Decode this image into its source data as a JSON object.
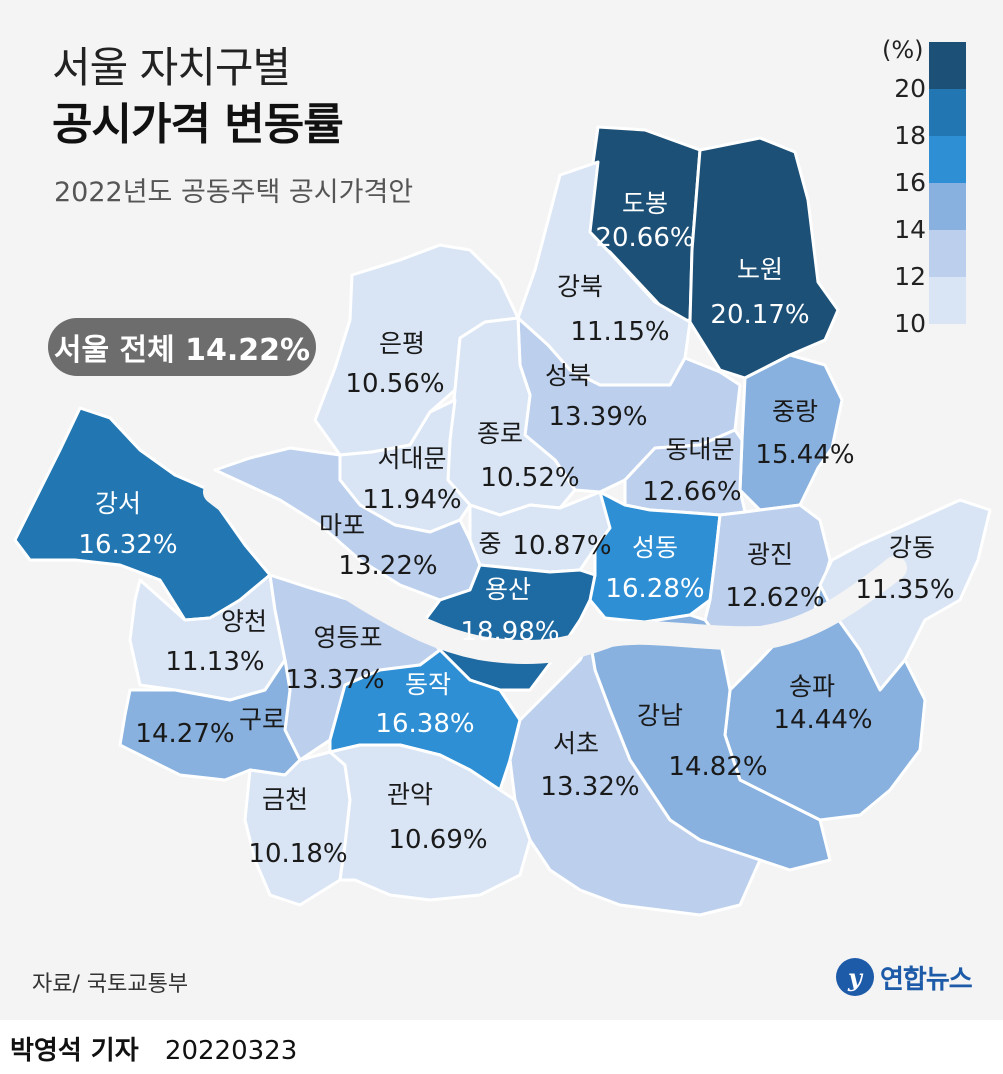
{
  "title_line1": "서울 자치구별",
  "title_line2": "공시가격 변동률",
  "subtitle": "2022년도 공동주택 공시가격안",
  "overall_badge": "서울 전체 14.22%",
  "legend": {
    "unit": "(%)",
    "ticks": [
      "20",
      "18",
      "16",
      "14",
      "12",
      "10"
    ],
    "colors": [
      "#1c5077",
      "#2277b3",
      "#2f8fd4",
      "#88b1df",
      "#bcd0ee",
      "#d9e5f5"
    ]
  },
  "districts": [
    {
      "key": "dobong",
      "name": "도봉",
      "value": "20.66%",
      "color": "#1c5077",
      "light_text": true
    },
    {
      "key": "nowon",
      "name": "노원",
      "value": "20.17%",
      "color": "#1c5077",
      "light_text": true
    },
    {
      "key": "gangbuk",
      "name": "강북",
      "value": "11.15%",
      "color": "#d9e5f5",
      "light_text": false
    },
    {
      "key": "eunpyeong",
      "name": "은평",
      "value": "10.56%",
      "color": "#d9e5f5",
      "light_text": false
    },
    {
      "key": "seongbuk",
      "name": "성북",
      "value": "13.39%",
      "color": "#bcd0ee",
      "light_text": false
    },
    {
      "key": "jungnang",
      "name": "중랑",
      "value": "15.44%",
      "color": "#88b1df",
      "light_text": false
    },
    {
      "key": "jongno",
      "name": "종로",
      "value": "10.52%",
      "color": "#d9e5f5",
      "light_text": false
    },
    {
      "key": "seodaemun",
      "name": "서대문",
      "value": "11.94%",
      "color": "#d9e5f5",
      "light_text": false
    },
    {
      "key": "dongdaemun",
      "name": "동대문",
      "value": "12.66%",
      "color": "#bcd0ee",
      "light_text": false
    },
    {
      "key": "gangseo",
      "name": "강서",
      "value": "16.32%",
      "color": "#2277b3",
      "light_text": true
    },
    {
      "key": "mapo",
      "name": "마포",
      "value": "13.22%",
      "color": "#bcd0ee",
      "light_text": false
    },
    {
      "key": "jung",
      "name": "중",
      "value": "10.87%",
      "color": "#d9e5f5",
      "light_text": false
    },
    {
      "key": "seongdong",
      "name": "성동",
      "value": "16.28%",
      "color": "#2f8fd4",
      "light_text": true
    },
    {
      "key": "gwangjin",
      "name": "광진",
      "value": "12.62%",
      "color": "#bcd0ee",
      "light_text": false
    },
    {
      "key": "gangdong",
      "name": "강동",
      "value": "11.35%",
      "color": "#d9e5f5",
      "light_text": false
    },
    {
      "key": "yongsan",
      "name": "용산",
      "value": "18.98%",
      "color": "#1e6aa2",
      "light_text": true
    },
    {
      "key": "yangcheon",
      "name": "양천",
      "value": "11.13%",
      "color": "#d9e5f5",
      "light_text": false
    },
    {
      "key": "yeongdeungpo",
      "name": "영등포",
      "value": "13.37%",
      "color": "#bcd0ee",
      "light_text": false
    },
    {
      "key": "dongjak",
      "name": "동작",
      "value": "16.38%",
      "color": "#2f8fd4",
      "light_text": true
    },
    {
      "key": "guro",
      "name": "구로",
      "value": "14.27%",
      "color": "#88b1df",
      "light_text": false
    },
    {
      "key": "songpa",
      "name": "송파",
      "value": "14.44%",
      "color": "#88b1df",
      "light_text": false
    },
    {
      "key": "gangnam",
      "name": "강남",
      "value": "14.82%",
      "color": "#88b1df",
      "light_text": false
    },
    {
      "key": "seocho",
      "name": "서초",
      "value": "13.32%",
      "color": "#bcd0ee",
      "light_text": false
    },
    {
      "key": "geumcheon",
      "name": "금천",
      "value": "10.18%",
      "color": "#d9e5f5",
      "light_text": false
    },
    {
      "key": "gwanak",
      "name": "관악",
      "value": "10.69%",
      "color": "#d9e5f5",
      "light_text": false
    }
  ],
  "source": "자료/ 국토교통부",
  "logo": {
    "mark": "y",
    "text": "연합뉴스"
  },
  "footer": {
    "reporter": "박영석 기자",
    "date": "20220323"
  }
}
